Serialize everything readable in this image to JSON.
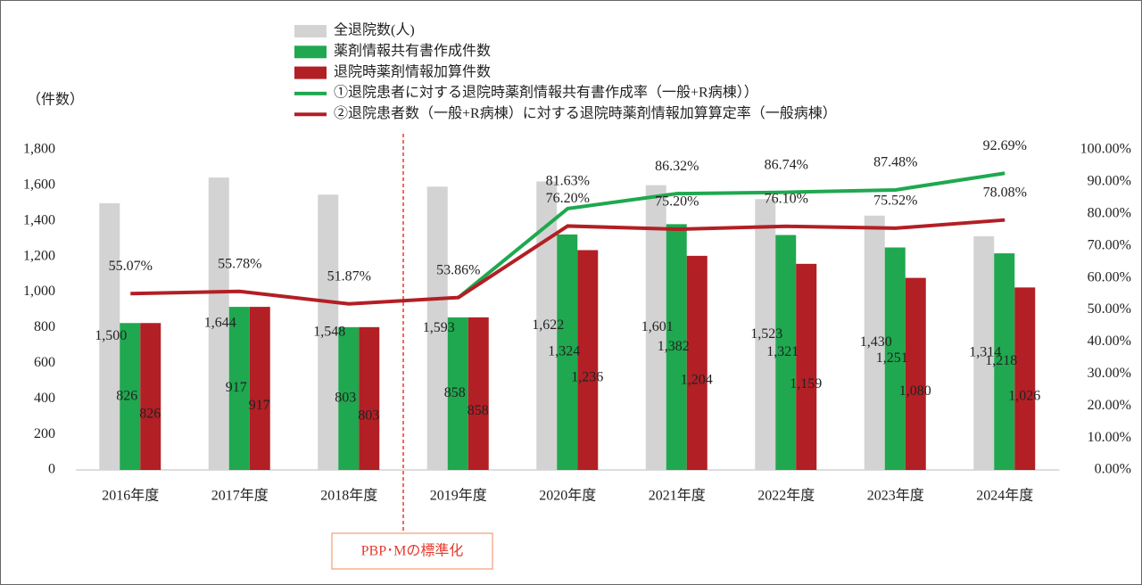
{
  "chart_data": {
    "type": "bar",
    "y_unit_label": "（件数）",
    "categories": [
      "2016年度",
      "2017年度",
      "2018年度",
      "2019年度",
      "2020年度",
      "2021年度",
      "2022年度",
      "2023年度",
      "2024年度"
    ],
    "series": [
      {
        "name": "全退院数(人)",
        "color": "#d3d3d3",
        "values": [
          1500,
          1644,
          1548,
          1593,
          1622,
          1601,
          1523,
          1430,
          1314
        ],
        "value_labels": [
          "1,500",
          "1,644",
          "1,548",
          "1,593",
          "1,622",
          "1,601",
          "1,523",
          "1,430",
          "1,314"
        ]
      },
      {
        "name": "薬剤情報共有書作成件数",
        "color": "#1fa84f",
        "values": [
          826,
          917,
          803,
          858,
          1324,
          1382,
          1321,
          1251,
          1218
        ],
        "value_labels": [
          "826",
          "917",
          "803",
          "858",
          "1,324",
          "1,382",
          "1,321",
          "1,251",
          "1,218"
        ]
      },
      {
        "name": "退院時薬剤情報加算件数",
        "color": "#b21f24",
        "values": [
          826,
          917,
          803,
          858,
          1236,
          1204,
          1159,
          1080,
          1026
        ],
        "value_labels": [
          "826",
          "917",
          "803",
          "858",
          "1,236",
          "1,204",
          "1,159",
          "1,080",
          "1,026"
        ]
      },
      {
        "name": "①退院患者に対する退院時薬剤情報共有書作成率（一般+R病棟））",
        "type": "line",
        "axis": "y2",
        "color": "#1fa84f",
        "values": [
          null,
          null,
          null,
          53.86,
          81.63,
          86.32,
          86.74,
          87.48,
          92.69
        ],
        "value_labels": [
          null,
          null,
          null,
          null,
          "81.63%",
          "86.32%",
          "86.74%",
          "87.48%",
          "92.69%"
        ]
      },
      {
        "name": "②退院患者数（一般+R病棟）に対する退院時薬剤情報加算算定率（一般病棟）",
        "type": "line",
        "axis": "y2",
        "color": "#b21f24",
        "values": [
          55.07,
          55.78,
          51.87,
          53.86,
          76.2,
          75.2,
          76.1,
          75.52,
          78.08
        ],
        "value_labels": [
          "55.07%",
          "55.78%",
          "51.87%",
          "53.86%",
          "76.20%",
          "75.20%",
          "76.10%",
          "75.52%",
          "78.08%"
        ]
      }
    ],
    "ylim": [
      0,
      1800
    ],
    "yticks": [
      0,
      200,
      400,
      600,
      800,
      {
        "value": 1000,
        "label": "1,000"
      },
      {
        "value": 1200,
        "label": "1,200"
      },
      {
        "value": 1400,
        "label": "1,400"
      },
      {
        "value": 1600,
        "label": "1,600"
      },
      {
        "value": 1800,
        "label": "1,800"
      }
    ],
    "y2lim": [
      0,
      100
    ],
    "y2ticks": [
      {
        "value": 0,
        "label": "0.00%"
      },
      {
        "value": 10,
        "label": "10.00%"
      },
      {
        "value": 20,
        "label": "20.00%"
      },
      {
        "value": 30,
        "label": "30.00%"
      },
      {
        "value": 40,
        "label": "40.00%"
      },
      {
        "value": 50,
        "label": "50.00%"
      },
      {
        "value": 60,
        "label": "60.00%"
      },
      {
        "value": 70,
        "label": "70.00%"
      },
      {
        "value": 80,
        "label": "80.00%"
      },
      {
        "value": 90,
        "label": "90.00%"
      },
      {
        "value": 100,
        "label": "100.00%"
      }
    ],
    "annotation": "PBP･Mの標準化"
  }
}
